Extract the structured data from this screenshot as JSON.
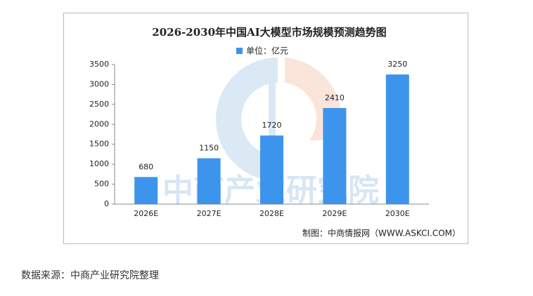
{
  "chart_data": {
    "type": "bar",
    "title": "2026-2030年中国AI大模型市场规模预测趋势图",
    "categories": [
      "2026E",
      "2027E",
      "2028E",
      "2029E",
      "2030E"
    ],
    "series": [
      {
        "name": "单位：亿元",
        "color": "#3d94ec",
        "values": [
          680,
          1150,
          1720,
          2410,
          3250
        ]
      }
    ],
    "ylim": [
      0,
      3500
    ],
    "yticks": [
      0,
      500,
      1000,
      1500,
      2000,
      2500,
      3000,
      3500
    ],
    "watermark": "中商产业研究院",
    "credit": "制图：中商情报网（WWW.ASKCI.COM）"
  },
  "source": "数据来源：中商产业研究院整理"
}
